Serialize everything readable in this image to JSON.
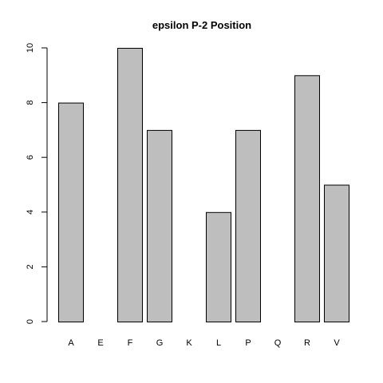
{
  "chart_data": {
    "type": "bar",
    "title": "epsilon P-2 Position",
    "xlabel": "",
    "ylabel": "",
    "categories": [
      "A",
      "E",
      "F",
      "G",
      "K",
      "L",
      "P",
      "Q",
      "R",
      "V"
    ],
    "values": [
      8,
      0,
      10,
      7,
      0,
      4,
      7,
      0,
      9,
      5
    ],
    "ylim": [
      0,
      10
    ],
    "yticks": [
      "0",
      "2",
      "4",
      "6",
      "8",
      "10"
    ],
    "grid": false,
    "legend": "none",
    "colors": {
      "bar_fill": "#bebebe",
      "bar_stroke": "#000000",
      "text": "#000000"
    }
  }
}
